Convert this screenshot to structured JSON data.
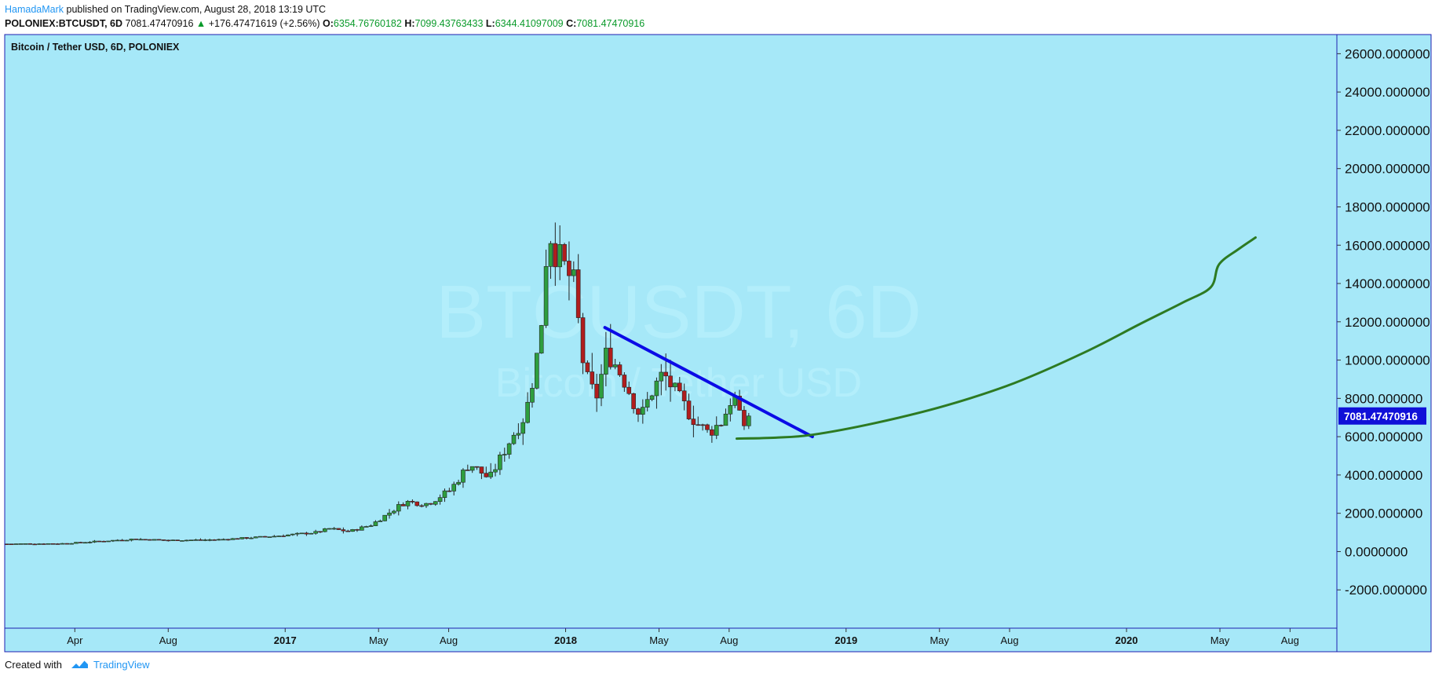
{
  "header": {
    "author": "HamadaMark",
    "published": "published on TradingView.com, August 28, 2018 13:19 UTC",
    "symbol": "POLONIEX:BTCUSDT, 6D",
    "last": "7081.47470916",
    "change": "+176.47471619 (+2.56%)",
    "o_label": "O:",
    "o_value": "6354.76760182",
    "h_label": "H:",
    "h_value": "7099.43763433",
    "l_label": "L:",
    "l_value": "6344.41097009",
    "c_label": "C:",
    "c_value": "7081.47470916"
  },
  "footer": {
    "created_with": "Created with",
    "brand": "TradingView"
  },
  "colors": {
    "plot_bg": "#a6e8f8",
    "frame": "#1f1fb0",
    "up": "#2e9e3e",
    "down": "#b11d1d",
    "trendline": "#0b0be6",
    "projection": "#2d7a22",
    "price_label_bg": "#1010d8"
  },
  "chart_data": {
    "type": "candlestick",
    "title": "Bitcoin / Tether USD, 6D, POLONIEX",
    "watermark_symbol": "BTCUSDT, 6D",
    "watermark_name": "Bitcoin / Tether USD",
    "ylim": [
      -4000,
      27000
    ],
    "y_ticks": [
      "26000.000000",
      "24000.000000",
      "22000.000000",
      "20000.000000",
      "18000.000000",
      "16000.000000",
      "14000.000000",
      "12000.000000",
      "10000.000000",
      "8000.000000",
      "6000.000000",
      "4000.000000",
      "2000.000000",
      "0.0000000",
      "-2000.000000"
    ],
    "y_tick_values": [
      26000,
      24000,
      22000,
      20000,
      18000,
      16000,
      14000,
      12000,
      10000,
      8000,
      6000,
      4000,
      2000,
      0,
      -2000
    ],
    "x_ticks": [
      {
        "label": "Apr",
        "t": 2016.25,
        "bold": false
      },
      {
        "label": "Aug",
        "t": 2016.583,
        "bold": false
      },
      {
        "label": "2017",
        "t": 2017.0,
        "bold": true
      },
      {
        "label": "May",
        "t": 2017.333,
        "bold": false
      },
      {
        "label": "Aug",
        "t": 2017.583,
        "bold": false
      },
      {
        "label": "2018",
        "t": 2018.0,
        "bold": true
      },
      {
        "label": "May",
        "t": 2018.333,
        "bold": false
      },
      {
        "label": "Aug",
        "t": 2018.583,
        "bold": false
      },
      {
        "label": "2019",
        "t": 2019.0,
        "bold": true
      },
      {
        "label": "May",
        "t": 2019.333,
        "bold": false
      },
      {
        "label": "Aug",
        "t": 2019.583,
        "bold": false
      },
      {
        "label": "2020",
        "t": 2020.0,
        "bold": true
      },
      {
        "label": "May",
        "t": 2020.333,
        "bold": false
      },
      {
        "label": "Aug",
        "t": 2020.583,
        "bold": false
      }
    ],
    "x_range": [
      2016.0,
      2020.75
    ],
    "last_price_label": "7081.47470916",
    "last_price": 7081.47,
    "price_anchors": [
      [
        2016.0,
        400
      ],
      [
        2016.2,
        420
      ],
      [
        2016.45,
        650
      ],
      [
        2016.58,
        590
      ],
      [
        2016.75,
        620
      ],
      [
        2016.95,
        800
      ],
      [
        2017.1,
        1000
      ],
      [
        2017.15,
        1200
      ],
      [
        2017.22,
        1050
      ],
      [
        2017.3,
        1400
      ],
      [
        2017.42,
        2600
      ],
      [
        2017.5,
        2500
      ],
      [
        2017.58,
        3200
      ],
      [
        2017.65,
        4600
      ],
      [
        2017.72,
        3800
      ],
      [
        2017.8,
        6000
      ],
      [
        2017.85,
        7200
      ],
      [
        2017.9,
        11000
      ],
      [
        2017.93,
        17000
      ],
      [
        2017.96,
        15500
      ],
      [
        2018.02,
        14000
      ],
      [
        2018.06,
        9200
      ],
      [
        2018.1,
        8000
      ],
      [
        2018.14,
        10500
      ],
      [
        2018.2,
        9000
      ],
      [
        2018.26,
        7000
      ],
      [
        2018.3,
        8400
      ],
      [
        2018.34,
        9300
      ],
      [
        2018.4,
        7900
      ],
      [
        2018.46,
        6700
      ],
      [
        2018.5,
        6200
      ],
      [
        2018.55,
        6800
      ],
      [
        2018.59,
        8300
      ],
      [
        2018.62,
        6500
      ],
      [
        2018.657,
        7081
      ]
    ],
    "trendline": {
      "from": [
        2018.14,
        11700
      ],
      "to": [
        2018.88,
        6000
      ]
    },
    "projection": [
      [
        2018.61,
        5900
      ],
      [
        2018.75,
        5950
      ],
      [
        2018.88,
        6100
      ],
      [
        2019.1,
        6700
      ],
      [
        2019.35,
        7600
      ],
      [
        2019.6,
        8800
      ],
      [
        2019.85,
        10400
      ],
      [
        2020.05,
        11900
      ],
      [
        2020.2,
        13000
      ],
      [
        2020.3,
        13800
      ],
      [
        2020.33,
        15000
      ],
      [
        2020.4,
        15800
      ],
      [
        2020.46,
        16400
      ]
    ]
  }
}
